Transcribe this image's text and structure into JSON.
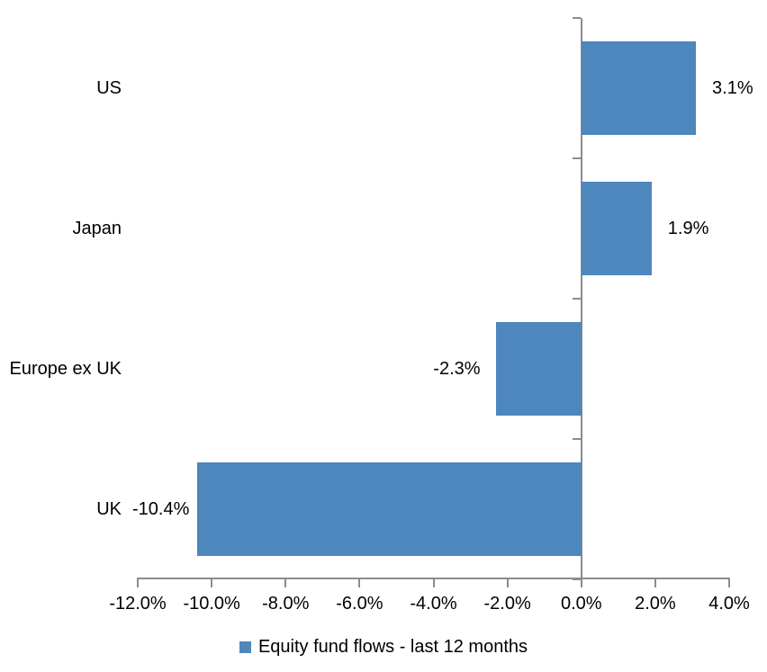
{
  "chart_data": {
    "type": "bar",
    "orientation": "horizontal",
    "title": "",
    "categories": [
      "US",
      "Japan",
      "Europe ex UK",
      "UK"
    ],
    "values": [
      3.1,
      1.9,
      -2.3,
      -10.4
    ],
    "data_labels": [
      "3.1%",
      "1.9%",
      "-2.3%",
      "-10.4%"
    ],
    "series_name": "Equity fund flows - last 12 months",
    "xlim": [
      -12,
      4
    ],
    "x_ticks": [
      -12,
      -10,
      -8,
      -6,
      -4,
      -2,
      0,
      2,
      4
    ],
    "x_tick_labels": [
      "-12.0%",
      "-10.0%",
      "-8.0%",
      "-6.0%",
      "-4.0%",
      "-2.0%",
      "0.0%",
      "2.0%",
      "4.0%"
    ],
    "grid": false,
    "legend_position": "bottom",
    "bar_color": "#4E86BE",
    "axis_color": "#8C8C8C",
    "text_color": "#000000",
    "background": "#FFFFFF"
  },
  "legend": {
    "label": "Equity fund flows - last 12 months"
  }
}
